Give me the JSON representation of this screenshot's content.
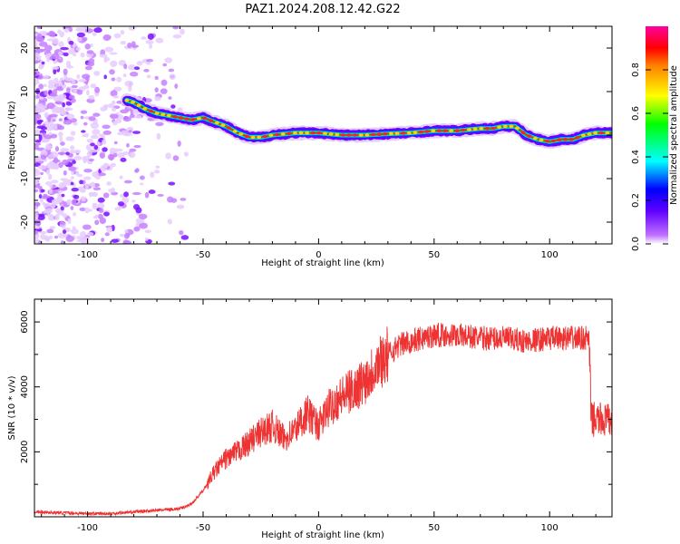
{
  "figure": {
    "title": "PAZ1.2024.208.12.42.G22"
  },
  "chart_data": [
    {
      "type": "heatmap",
      "xlabel": "Height of straight line (km)",
      "ylabel": "Frequency (Hz)",
      "xlim": [
        -123,
        127
      ],
      "ylim": [
        -25,
        25
      ],
      "x_ticks": [
        -100,
        -50,
        0,
        50,
        100
      ],
      "y_ticks": [
        -20,
        -10,
        0,
        10,
        20
      ],
      "colorbar": {
        "label": "Normalized spectral amplitude",
        "range": [
          0,
          1
        ],
        "ticks": [
          0.0,
          0.2,
          0.4,
          0.6,
          0.8
        ],
        "colormap": [
          "#ffffff",
          "#c070ff",
          "#6000ff",
          "#0000ff",
          "#00ffff",
          "#00ff00",
          "#ffff00",
          "#ff8000",
          "#ff0000",
          "#ff00a0"
        ]
      },
      "ridge": {
        "x": [
          -83,
          -80,
          -75,
          -70,
          -65,
          -60,
          -55,
          -50,
          -45,
          -40,
          -35,
          -30,
          -25,
          -20,
          -10,
          0,
          10,
          20,
          30,
          40,
          50,
          60,
          70,
          75,
          80,
          85,
          90,
          95,
          100,
          105,
          110,
          115,
          120,
          127
        ],
        "freq": [
          8,
          7.5,
          6,
          5,
          4.5,
          4,
          3.5,
          4,
          3,
          2,
          0.5,
          -0.5,
          -0.5,
          0,
          0.5,
          0.5,
          0,
          0,
          0.3,
          0.5,
          1,
          1,
          1.5,
          1.5,
          2,
          2,
          0,
          -1,
          -1.5,
          -1,
          -1,
          0,
          0.5,
          0.5
        ]
      },
      "noise_region_x": [
        -123,
        -60
      ]
    },
    {
      "type": "line",
      "xlabel": "Height of straight line (km)",
      "ylabel": "SNR (10 * v/v)",
      "xlim": [
        -123,
        127
      ],
      "ylim": [
        0,
        6700
      ],
      "x_ticks": [
        -100,
        -50,
        0,
        50,
        100
      ],
      "y_ticks": [
        2000,
        4000,
        6000
      ],
      "color": "#ee3333",
      "series": [
        {
          "x": [
            -123,
            -110,
            -100,
            -90,
            -80,
            -70,
            -60,
            -55,
            -50,
            -45,
            -40,
            -35,
            -30,
            -25,
            -20,
            -15,
            -10,
            -5,
            0,
            5,
            10,
            15,
            20,
            25,
            30,
            35,
            40,
            50,
            60,
            70,
            80,
            90,
            100,
            110,
            117,
            118,
            120,
            127
          ],
          "values": [
            150,
            120,
            100,
            100,
            150,
            200,
            250,
            400,
            800,
            1400,
            1800,
            2000,
            2300,
            2600,
            2800,
            2400,
            2700,
            3200,
            2800,
            3400,
            3700,
            3900,
            4200,
            4700,
            5000,
            5300,
            5400,
            5600,
            5600,
            5500,
            5500,
            5400,
            5500,
            5500,
            5500,
            3000,
            3000,
            2950
          ]
        }
      ]
    }
  ]
}
